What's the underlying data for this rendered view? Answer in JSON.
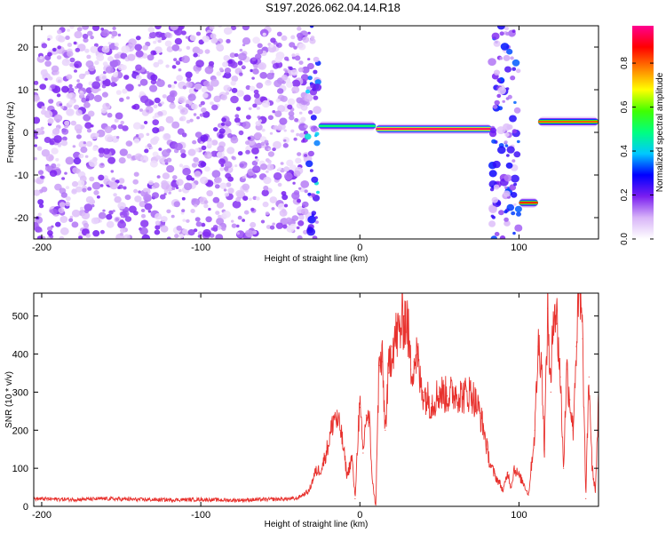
{
  "page_title": "S197.2026.062.04.14.R18",
  "colors": {
    "snr_line": "#e8322e",
    "axis": "#000000"
  },
  "chart_data": [
    {
      "type": "heatmap",
      "xlabel": "Height of straight line (km)",
      "ylabel": "Frequency (Hz)",
      "xlim": [
        -205,
        150
      ],
      "ylim": [
        -25,
        25
      ],
      "x_ticks": [
        -200,
        -100,
        0,
        100
      ],
      "x_tick_labels": [
        "-200",
        "-100",
        "0",
        "100"
      ],
      "y_ticks": [
        -20,
        -10,
        0,
        10,
        20
      ],
      "y_tick_labels": [
        "-20",
        "-10",
        "0",
        "10",
        "20"
      ],
      "colorbar": {
        "label": "Normalized spectral amplitude",
        "range": [
          0.0,
          0.97
        ],
        "ticks": [
          0.0,
          0.2,
          0.4,
          0.6,
          0.8
        ],
        "tick_labels": [
          "0.0",
          "0.2",
          "0.4",
          "0.6",
          "0.8"
        ],
        "colormap": [
          "#ffffff",
          "#d8b4f8",
          "#7a1ef0",
          "#0000ff",
          "#00c8ff",
          "#00ff80",
          "#40ff00",
          "#ffff00",
          "#ff8000",
          "#ff0000",
          "#ff0090"
        ]
      },
      "features": [
        {
          "kind": "noise",
          "x_range": [
            -205,
            -30
          ],
          "level": 0.12
        },
        {
          "kind": "noise",
          "x_range": [
            -33,
            -26
          ],
          "level": 0.25
        },
        {
          "kind": "tone",
          "x_range": [
            -26,
            10
          ],
          "frequency": 1.5,
          "level": 0.5
        },
        {
          "kind": "tone",
          "x_range": [
            10,
            83
          ],
          "frequency": 0.8,
          "level": 0.95
        },
        {
          "kind": "noise",
          "x_range": [
            83,
            100
          ],
          "level": 0.2
        },
        {
          "kind": "tone",
          "x_range": [
            100,
            112
          ],
          "frequency": -16.5,
          "level": 0.85
        },
        {
          "kind": "tone",
          "x_range": [
            112,
            150
          ],
          "frequency": 2.5,
          "level": 0.8
        }
      ]
    },
    {
      "type": "line",
      "xlabel": "Height of straight line (km)",
      "ylabel": "SNR (10 * v/v)",
      "xlim": [
        -205,
        150
      ],
      "ylim": [
        0,
        560
      ],
      "x_ticks": [
        -200,
        -100,
        0,
        100
      ],
      "x_tick_labels": [
        "-200",
        "-100",
        "0",
        "100"
      ],
      "y_ticks": [
        0,
        100,
        200,
        300,
        400,
        500
      ],
      "y_tick_labels": [
        "0",
        "100",
        "200",
        "300",
        "400",
        "500"
      ],
      "series": [
        {
          "color": "#e8322e",
          "x": [
            -205,
            -180,
            -160,
            -140,
            -120,
            -100,
            -80,
            -60,
            -40,
            -32,
            -28,
            -24,
            -20,
            -16,
            -12,
            -8,
            -5,
            -3,
            -1,
            0,
            2,
            4,
            6,
            8,
            10,
            12,
            14,
            16,
            18,
            20,
            22,
            25,
            28,
            30,
            32,
            34,
            36,
            38,
            40,
            45,
            50,
            55,
            60,
            65,
            70,
            75,
            78,
            80,
            82,
            85,
            88,
            90,
            93,
            95,
            97,
            100,
            103,
            106,
            110,
            112,
            114,
            116,
            118,
            120,
            122,
            124,
            126,
            128,
            130,
            132,
            134,
            136,
            138,
            140,
            142,
            144,
            146,
            148,
            150
          ],
          "y": [
            20,
            18,
            20,
            18,
            17,
            18,
            16,
            18,
            20,
            40,
            90,
            100,
            160,
            240,
            200,
            80,
            130,
            20,
            210,
            260,
            140,
            240,
            220,
            60,
            0,
            370,
            380,
            200,
            350,
            420,
            440,
            460,
            500,
            480,
            360,
            380,
            400,
            320,
            300,
            270,
            300,
            290,
            300,
            290,
            300,
            250,
            200,
            150,
            110,
            80,
            60,
            40,
            90,
            50,
            100,
            80,
            60,
            30,
            200,
            420,
            400,
            150,
            520,
            300,
            560,
            480,
            340,
            100,
            360,
            280,
            200,
            420,
            560,
            440,
            20,
            340,
            100,
            40,
            260
          ]
        }
      ]
    }
  ]
}
